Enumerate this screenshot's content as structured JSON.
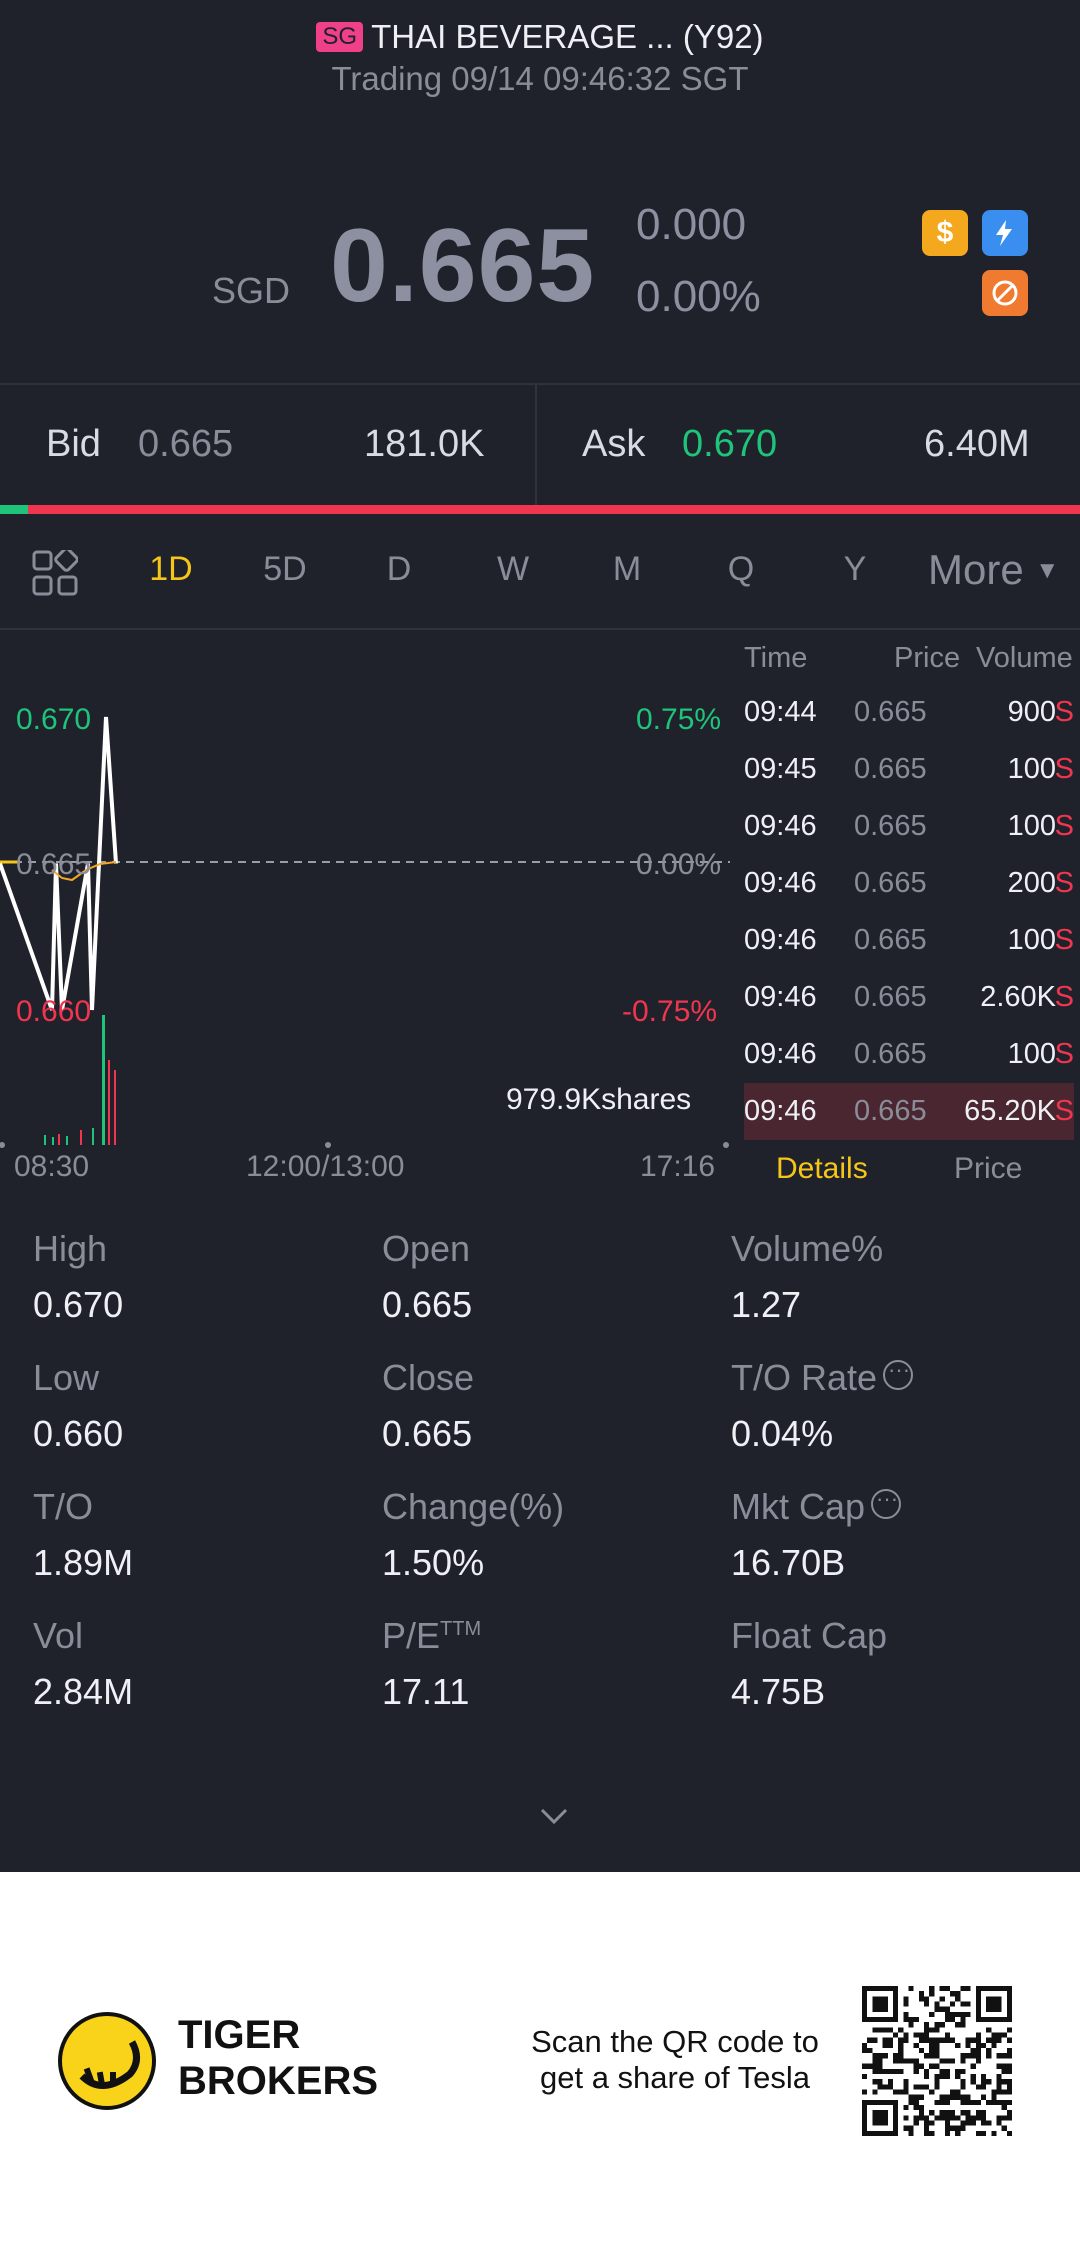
{
  "header": {
    "market_badge": "SG",
    "title": "THAI BEVERAGE ... (Y92)",
    "status": "Trading 09/14 09:46:32 SGT"
  },
  "quote": {
    "currency": "SGD",
    "last": "0.665",
    "change": "0.000",
    "change_pct": "0.00%",
    "badges": [
      {
        "icon": "dollar-icon",
        "color": "#f3a81d"
      },
      {
        "icon": "lightning-icon",
        "color": "#3a8ef0"
      },
      {
        "icon": "blocked-icon",
        "color": "#f07a30"
      }
    ]
  },
  "bidask": {
    "bid_label": "Bid",
    "bid_price": "0.665",
    "bid_size": "181.0K",
    "ask_label": "Ask",
    "ask_price": "0.670",
    "ask_size": "6.40M",
    "bid_share": 0.026
  },
  "tabs": [
    {
      "label": "1D",
      "active": true
    },
    {
      "label": "5D",
      "active": false
    },
    {
      "label": "D",
      "active": false
    },
    {
      "label": "W",
      "active": false
    },
    {
      "label": "M",
      "active": false
    },
    {
      "label": "Q",
      "active": false
    },
    {
      "label": "Y",
      "active": false
    }
  ],
  "more_label": "More",
  "chart_labels": {
    "high": "0.670",
    "mid": "0.665",
    "low": "0.660",
    "high_pct": "0.75%",
    "mid_pct": "0.00%",
    "low_pct": "-0.75%",
    "volume": "979.9Kshares",
    "t_start": "08:30",
    "t_mid": "12:00/13:00",
    "t_end": "17:16"
  },
  "chart_data": {
    "type": "line",
    "x_ticks": [
      "08:30",
      "12:00/13:00",
      "17:16"
    ],
    "ylim": [
      0.66,
      0.67
    ],
    "y_ticks": [
      "0.670",
      "0.665",
      "0.660"
    ],
    "y_ticks_pct": [
      "0.75%",
      "0.00%",
      "-0.75%"
    ],
    "prev_close": 0.665,
    "series": [
      {
        "values": [
          0.665,
          0.66,
          0.665,
          0.66,
          0.665,
          0.66,
          0.67,
          0.665
        ]
      }
    ],
    "volume_total": "979.9Kshares"
  },
  "trades": {
    "headers": {
      "time": "Time",
      "price": "Price",
      "volume": "Volume"
    },
    "rows": [
      {
        "time": "09:44",
        "price": "0.665",
        "volume": "900",
        "side": "S"
      },
      {
        "time": "09:45",
        "price": "0.665",
        "volume": "100",
        "side": "S"
      },
      {
        "time": "09:46",
        "price": "0.665",
        "volume": "100",
        "side": "S"
      },
      {
        "time": "09:46",
        "price": "0.665",
        "volume": "200",
        "side": "S"
      },
      {
        "time": "09:46",
        "price": "0.665",
        "volume": "100",
        "side": "S"
      },
      {
        "time": "09:46",
        "price": "0.665",
        "volume": "2.60K",
        "side": "S"
      },
      {
        "time": "09:46",
        "price": "0.665",
        "volume": "100",
        "side": "S"
      },
      {
        "time": "09:46",
        "price": "0.665",
        "volume": "65.20K",
        "side": "S"
      }
    ],
    "tab_details": "Details",
    "tab_price": "Price"
  },
  "stats": {
    "high": {
      "label": "High",
      "value": "0.670"
    },
    "open": {
      "label": "Open",
      "value": "0.665"
    },
    "volume_pct": {
      "label": "Volume%",
      "value": "1.27"
    },
    "low": {
      "label": "Low",
      "value": "0.660"
    },
    "close": {
      "label": "Close",
      "value": "0.665"
    },
    "to_rate": {
      "label": "T/O Rate",
      "value": "0.04%"
    },
    "to": {
      "label": "T/O",
      "value": "1.89M"
    },
    "change_pct": {
      "label": "Change(%)",
      "value": "1.50%"
    },
    "mkt_cap": {
      "label": "Mkt Cap",
      "value": "16.70B"
    },
    "vol": {
      "label": "Vol",
      "value": "2.84M"
    },
    "pe": {
      "label": "P/E",
      "sup": "TTM",
      "value": "17.11"
    },
    "float_cap": {
      "label": "Float Cap",
      "value": "4.75B"
    }
  },
  "footer": {
    "brand_line1": "TIGER",
    "brand_line2": "BROKERS",
    "scan_line1": "Scan the QR code to",
    "scan_line2": "get a share of Tesla"
  }
}
